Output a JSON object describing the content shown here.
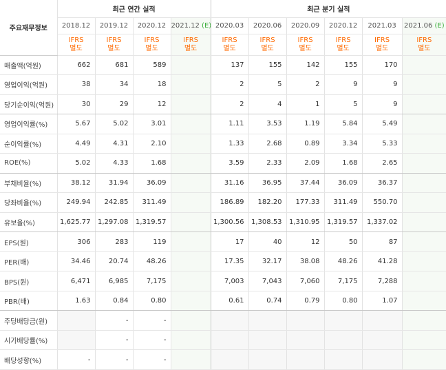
{
  "headers": {
    "item_col": "주요재무정보",
    "annual_title": "최근 연간 실적",
    "quarter_title": "최근 분기 실적",
    "annual_periods": [
      "2018.12",
      "2019.12",
      "2020.12",
      "2021.12"
    ],
    "quarter_periods": [
      "2020.03",
      "2020.06",
      "2020.09",
      "2020.12",
      "2021.03",
      "2021.06"
    ],
    "estimate_mark": "(E)",
    "ifrs_line1": "IFRS",
    "ifrs_line2": "별도"
  },
  "colors": {
    "ifrs": "#ff6a00",
    "estimate": "#3cae3c",
    "estimate_bg": "#f6faf5",
    "empty_bg": "#f7f7f7"
  },
  "rows": [
    {
      "label": "매출액(억원)",
      "annual": [
        "662",
        "681",
        "589",
        ""
      ],
      "quarter": [
        "137",
        "155",
        "142",
        "155",
        "170",
        ""
      ]
    },
    {
      "label": "영업이익(억원)",
      "annual": [
        "38",
        "34",
        "18",
        ""
      ],
      "quarter": [
        "2",
        "5",
        "2",
        "9",
        "9",
        ""
      ]
    },
    {
      "label": "당기순이익(억원)",
      "annual": [
        "30",
        "29",
        "12",
        ""
      ],
      "quarter": [
        "2",
        "4",
        "1",
        "5",
        "9",
        ""
      ]
    },
    {
      "label": "영업이익률(%)",
      "annual": [
        "5.67",
        "5.02",
        "3.01",
        ""
      ],
      "quarter": [
        "1.11",
        "3.53",
        "1.19",
        "5.84",
        "5.49",
        ""
      ]
    },
    {
      "label": "순이익률(%)",
      "annual": [
        "4.49",
        "4.31",
        "2.10",
        ""
      ],
      "quarter": [
        "1.33",
        "2.68",
        "0.89",
        "3.34",
        "5.33",
        ""
      ]
    },
    {
      "label": "ROE(%)",
      "annual": [
        "5.02",
        "4.33",
        "1.68",
        ""
      ],
      "quarter": [
        "3.59",
        "2.33",
        "2.09",
        "1.68",
        "2.65",
        ""
      ]
    },
    {
      "label": "부채비율(%)",
      "annual": [
        "38.12",
        "31.94",
        "36.09",
        ""
      ],
      "quarter": [
        "31.16",
        "36.95",
        "37.44",
        "36.09",
        "36.37",
        ""
      ]
    },
    {
      "label": "당좌비율(%)",
      "annual": [
        "249.94",
        "242.85",
        "311.49",
        ""
      ],
      "quarter": [
        "186.89",
        "182.20",
        "177.33",
        "311.49",
        "550.70",
        ""
      ]
    },
    {
      "label": "유보율(%)",
      "annual": [
        "1,625.77",
        "1,297.08",
        "1,319.57",
        ""
      ],
      "quarter": [
        "1,300.56",
        "1,308.53",
        "1,310.95",
        "1,319.57",
        "1,337.02",
        ""
      ]
    },
    {
      "label": "EPS(원)",
      "annual": [
        "306",
        "283",
        "119",
        ""
      ],
      "quarter": [
        "17",
        "40",
        "12",
        "50",
        "87",
        ""
      ]
    },
    {
      "label": "PER(배)",
      "annual": [
        "34.46",
        "20.74",
        "48.26",
        ""
      ],
      "quarter": [
        "17.35",
        "32.17",
        "38.08",
        "48.26",
        "41.28",
        ""
      ]
    },
    {
      "label": "BPS(원)",
      "annual": [
        "6,471",
        "6,985",
        "7,175",
        ""
      ],
      "quarter": [
        "7,003",
        "7,043",
        "7,060",
        "7,175",
        "7,288",
        ""
      ]
    },
    {
      "label": "PBR(배)",
      "annual": [
        "1.63",
        "0.84",
        "0.80",
        ""
      ],
      "quarter": [
        "0.61",
        "0.74",
        "0.79",
        "0.80",
        "1.07",
        ""
      ]
    },
    {
      "label": "주당배당금(원)",
      "annual": [
        "",
        "-",
        "-",
        ""
      ],
      "quarter": [
        "",
        "",
        "",
        "",
        "",
        ""
      ]
    },
    {
      "label": "시가배당률(%)",
      "annual": [
        "",
        "-",
        "-",
        ""
      ],
      "quarter": [
        "",
        "",
        "",
        "",
        "",
        ""
      ]
    },
    {
      "label": "배당성향(%)",
      "annual": [
        "-",
        "-",
        "-",
        ""
      ],
      "quarter": [
        "",
        "",
        "",
        "",
        "",
        ""
      ]
    }
  ]
}
